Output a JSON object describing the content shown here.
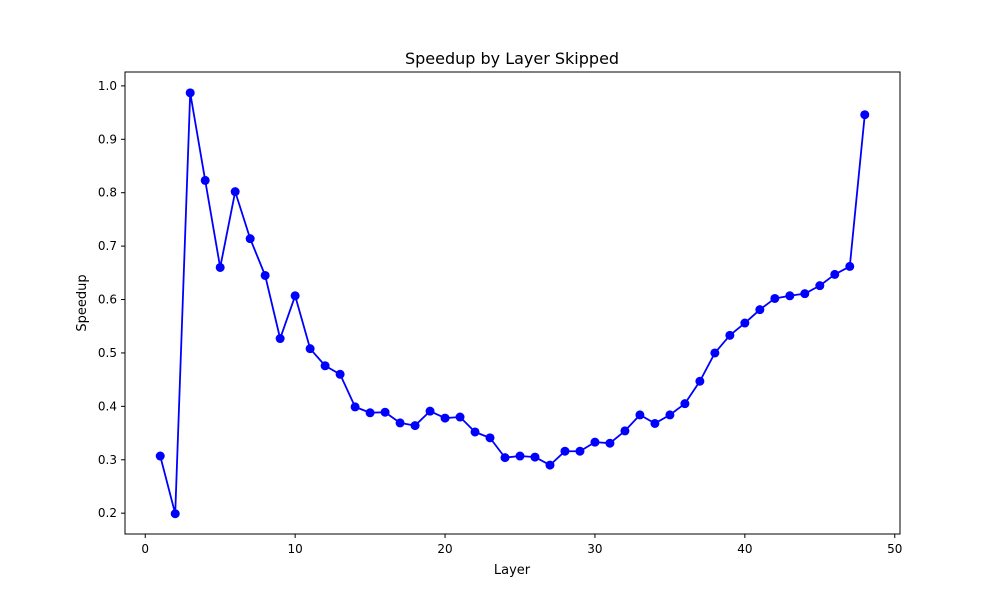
{
  "chart_data": {
    "type": "line",
    "title": "Speedup by Layer Skipped",
    "xlabel": "Layer",
    "ylabel": "Speedup",
    "xlim": [
      -1.35,
      50.35
    ],
    "ylim": [
      0.161,
      1.026
    ],
    "xticks": [
      0,
      10,
      20,
      30,
      40,
      50
    ],
    "yticks": [
      0.2,
      0.3,
      0.4,
      0.5,
      0.6,
      0.7,
      0.8,
      0.9,
      1.0
    ],
    "xtick_labels": [
      "0",
      "10",
      "20",
      "30",
      "40",
      "50"
    ],
    "ytick_labels": [
      "0.2",
      "0.3",
      "0.4",
      "0.5",
      "0.6",
      "0.7",
      "0.8",
      "0.9",
      "1.0"
    ],
    "grid": false,
    "series": [
      {
        "color": "#0000ff",
        "marker": "circle",
        "x": [
          1,
          2,
          3,
          4,
          5,
          6,
          7,
          8,
          9,
          10,
          11,
          12,
          13,
          14,
          15,
          16,
          17,
          18,
          19,
          20,
          21,
          22,
          23,
          24,
          25,
          26,
          27,
          28,
          29,
          30,
          31,
          32,
          33,
          34,
          35,
          36,
          37,
          38,
          39,
          40,
          41,
          42,
          43,
          44,
          45,
          46,
          47,
          48
        ],
        "y": [
          0.307,
          0.199,
          0.987,
          0.823,
          0.66,
          0.802,
          0.714,
          0.645,
          0.527,
          0.607,
          0.508,
          0.476,
          0.46,
          0.399,
          0.388,
          0.389,
          0.369,
          0.364,
          0.391,
          0.378,
          0.38,
          0.352,
          0.341,
          0.304,
          0.307,
          0.305,
          0.29,
          0.316,
          0.316,
          0.333,
          0.331,
          0.354,
          0.384,
          0.368,
          0.384,
          0.405,
          0.447,
          0.5,
          0.533,
          0.556,
          0.581,
          0.602,
          0.607,
          0.611,
          0.626,
          0.647,
          0.662,
          0.946
        ]
      }
    ]
  }
}
